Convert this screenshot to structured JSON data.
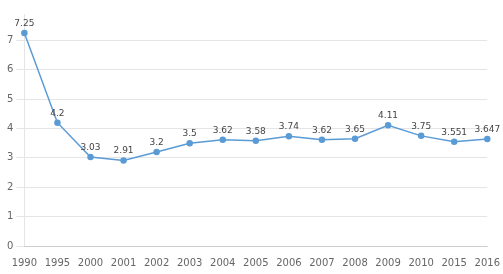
{
  "chart_data": {
    "type": "line",
    "categories": [
      "1990",
      "1995",
      "2000",
      "2001",
      "2002",
      "2003",
      "2004",
      "2005",
      "2006",
      "2007",
      "2008",
      "2009",
      "2010",
      "2015",
      "2016"
    ],
    "values": [
      7.25,
      4.2,
      3.03,
      2.91,
      3.2,
      3.5,
      3.62,
      3.58,
      3.74,
      3.62,
      3.65,
      4.11,
      3.75,
      3.551,
      3.647
    ],
    "color": "#5b9bd5",
    "marker": "circle",
    "ylim": [
      0,
      7.9
    ],
    "yticks": [
      0,
      1,
      2,
      3,
      4,
      5,
      6,
      7
    ],
    "grid": true,
    "data_labels": true
  }
}
